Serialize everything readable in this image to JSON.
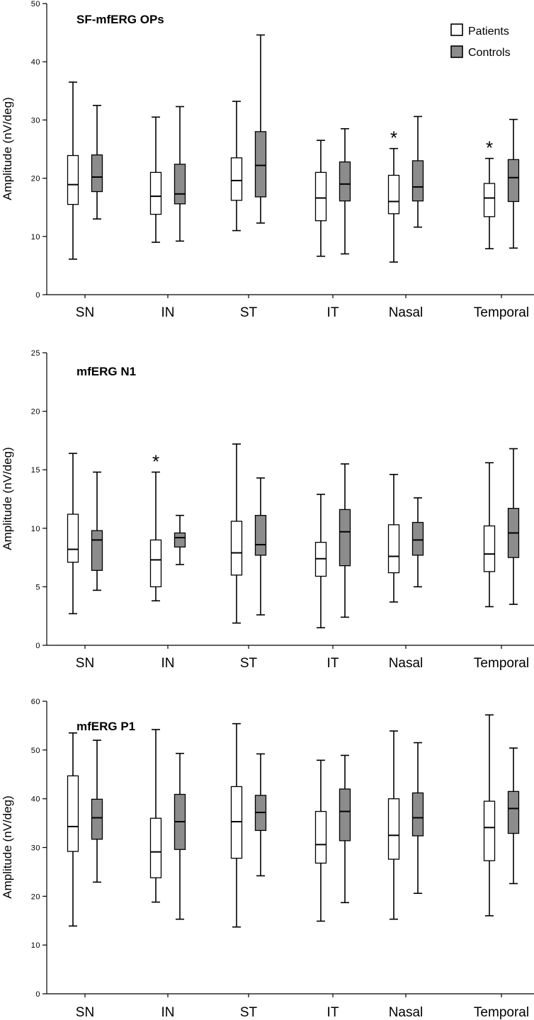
{
  "legend": {
    "patients_label": "Patients",
    "controls_label": "Controls",
    "patients_color": "#ffffff",
    "controls_color": "#8c8c8c"
  },
  "chart_data": [
    {
      "type": "box",
      "title": "SF-mfERG OPs",
      "ylabel": "Amplitude (nV/deg)",
      "ylim": [
        0,
        50
      ],
      "yticks": [
        0,
        10,
        20,
        30,
        40,
        50
      ],
      "categories": [
        "SN",
        "IN",
        "ST",
        "IT",
        "Nasal",
        "Temporal"
      ],
      "significance": [
        "",
        "",
        "",
        "",
        "*",
        "*"
      ],
      "series": [
        {
          "name": "Patients",
          "boxes": [
            {
              "min": 6.1,
              "q1": 15.5,
              "median": 18.9,
              "q3": 23.9,
              "max": 36.5
            },
            {
              "min": 9.0,
              "q1": 13.8,
              "median": 16.9,
              "q3": 21.0,
              "max": 30.5
            },
            {
              "min": 11.0,
              "q1": 16.2,
              "median": 19.6,
              "q3": 23.5,
              "max": 33.2
            },
            {
              "min": 6.6,
              "q1": 12.7,
              "median": 16.6,
              "q3": 21.0,
              "max": 26.5
            },
            {
              "min": 5.6,
              "q1": 13.9,
              "median": 16.0,
              "q3": 20.5,
              "max": 25.1
            },
            {
              "min": 7.9,
              "q1": 13.4,
              "median": 16.6,
              "q3": 19.1,
              "max": 23.4
            }
          ]
        },
        {
          "name": "Controls",
          "boxes": [
            {
              "min": 13.0,
              "q1": 17.7,
              "median": 20.2,
              "q3": 24.0,
              "max": 32.5
            },
            {
              "min": 9.2,
              "q1": 15.6,
              "median": 17.3,
              "q3": 22.4,
              "max": 32.3
            },
            {
              "min": 12.3,
              "q1": 16.8,
              "median": 22.2,
              "q3": 28.0,
              "max": 44.6
            },
            {
              "min": 7.0,
              "q1": 16.1,
              "median": 19.0,
              "q3": 22.8,
              "max": 28.5
            },
            {
              "min": 11.6,
              "q1": 16.1,
              "median": 18.5,
              "q3": 23.0,
              "max": 30.6
            },
            {
              "min": 8.0,
              "q1": 16.0,
              "median": 20.1,
              "q3": 23.2,
              "max": 30.1
            }
          ]
        }
      ]
    },
    {
      "type": "box",
      "title": "mfERG N1",
      "ylabel": "Amplitude (nV/deg)",
      "ylim": [
        0,
        25
      ],
      "yticks": [
        0,
        5,
        10,
        15,
        20,
        25
      ],
      "categories": [
        "SN",
        "IN",
        "ST",
        "IT",
        "Nasal",
        "Temporal"
      ],
      "significance": [
        "",
        "*",
        "",
        "",
        "",
        ""
      ],
      "series": [
        {
          "name": "Patients",
          "boxes": [
            {
              "min": 2.7,
              "q1": 7.1,
              "median": 8.2,
              "q3": 11.2,
              "max": 16.4
            },
            {
              "min": 3.8,
              "q1": 5.0,
              "median": 7.3,
              "q3": 9.0,
              "max": 14.8
            },
            {
              "min": 1.9,
              "q1": 6.0,
              "median": 7.9,
              "q3": 10.6,
              "max": 17.2
            },
            {
              "min": 1.5,
              "q1": 5.9,
              "median": 7.4,
              "q3": 8.8,
              "max": 12.9
            },
            {
              "min": 3.7,
              "q1": 6.2,
              "median": 7.6,
              "q3": 10.3,
              "max": 14.6
            },
            {
              "min": 3.3,
              "q1": 6.3,
              "median": 7.8,
              "q3": 10.2,
              "max": 15.6
            }
          ]
        },
        {
          "name": "Controls",
          "boxes": [
            {
              "min": 4.7,
              "q1": 6.4,
              "median": 9.0,
              "q3": 9.8,
              "max": 14.8
            },
            {
              "min": 6.9,
              "q1": 8.4,
              "median": 9.2,
              "q3": 9.6,
              "max": 11.1
            },
            {
              "min": 2.6,
              "q1": 7.7,
              "median": 8.6,
              "q3": 11.1,
              "max": 14.3
            },
            {
              "min": 2.4,
              "q1": 6.8,
              "median": 9.7,
              "q3": 11.6,
              "max": 15.5
            },
            {
              "min": 5.0,
              "q1": 7.7,
              "median": 9.0,
              "q3": 10.5,
              "max": 12.6
            },
            {
              "min": 3.5,
              "q1": 7.5,
              "median": 9.6,
              "q3": 11.7,
              "max": 16.8
            }
          ]
        }
      ]
    },
    {
      "type": "box",
      "title": "mfERG P1",
      "ylabel": "Amplitude (nV/deg)",
      "ylim": [
        0,
        60
      ],
      "yticks": [
        0,
        10,
        20,
        30,
        40,
        50,
        60
      ],
      "categories": [
        "SN",
        "IN",
        "ST",
        "IT",
        "Nasal",
        "Temporal"
      ],
      "significance": [
        "",
        "",
        "",
        "",
        "",
        ""
      ],
      "series": [
        {
          "name": "Patients",
          "boxes": [
            {
              "min": 13.9,
              "q1": 29.2,
              "median": 34.3,
              "q3": 44.7,
              "max": 53.5
            },
            {
              "min": 18.8,
              "q1": 23.8,
              "median": 29.1,
              "q3": 36.0,
              "max": 54.2
            },
            {
              "min": 13.7,
              "q1": 27.8,
              "median": 35.3,
              "q3": 42.5,
              "max": 55.4
            },
            {
              "min": 14.9,
              "q1": 26.8,
              "median": 30.6,
              "q3": 37.4,
              "max": 47.9
            },
            {
              "min": 15.3,
              "q1": 27.6,
              "median": 32.5,
              "q3": 40.0,
              "max": 53.9
            },
            {
              "min": 16.0,
              "q1": 27.3,
              "median": 34.1,
              "q3": 39.5,
              "max": 57.2
            }
          ]
        },
        {
          "name": "Controls",
          "boxes": [
            {
              "min": 22.9,
              "q1": 31.7,
              "median": 36.1,
              "q3": 39.9,
              "max": 52.0
            },
            {
              "min": 15.3,
              "q1": 29.6,
              "median": 35.3,
              "q3": 40.9,
              "max": 49.3
            },
            {
              "min": 24.2,
              "q1": 33.5,
              "median": 37.2,
              "q3": 40.7,
              "max": 49.2
            },
            {
              "min": 18.7,
              "q1": 31.4,
              "median": 37.4,
              "q3": 42.0,
              "max": 48.9
            },
            {
              "min": 20.6,
              "q1": 32.4,
              "median": 36.1,
              "q3": 41.2,
              "max": 51.5
            },
            {
              "min": 22.6,
              "q1": 32.9,
              "median": 38.0,
              "q3": 41.5,
              "max": 50.4
            }
          ]
        }
      ]
    }
  ]
}
